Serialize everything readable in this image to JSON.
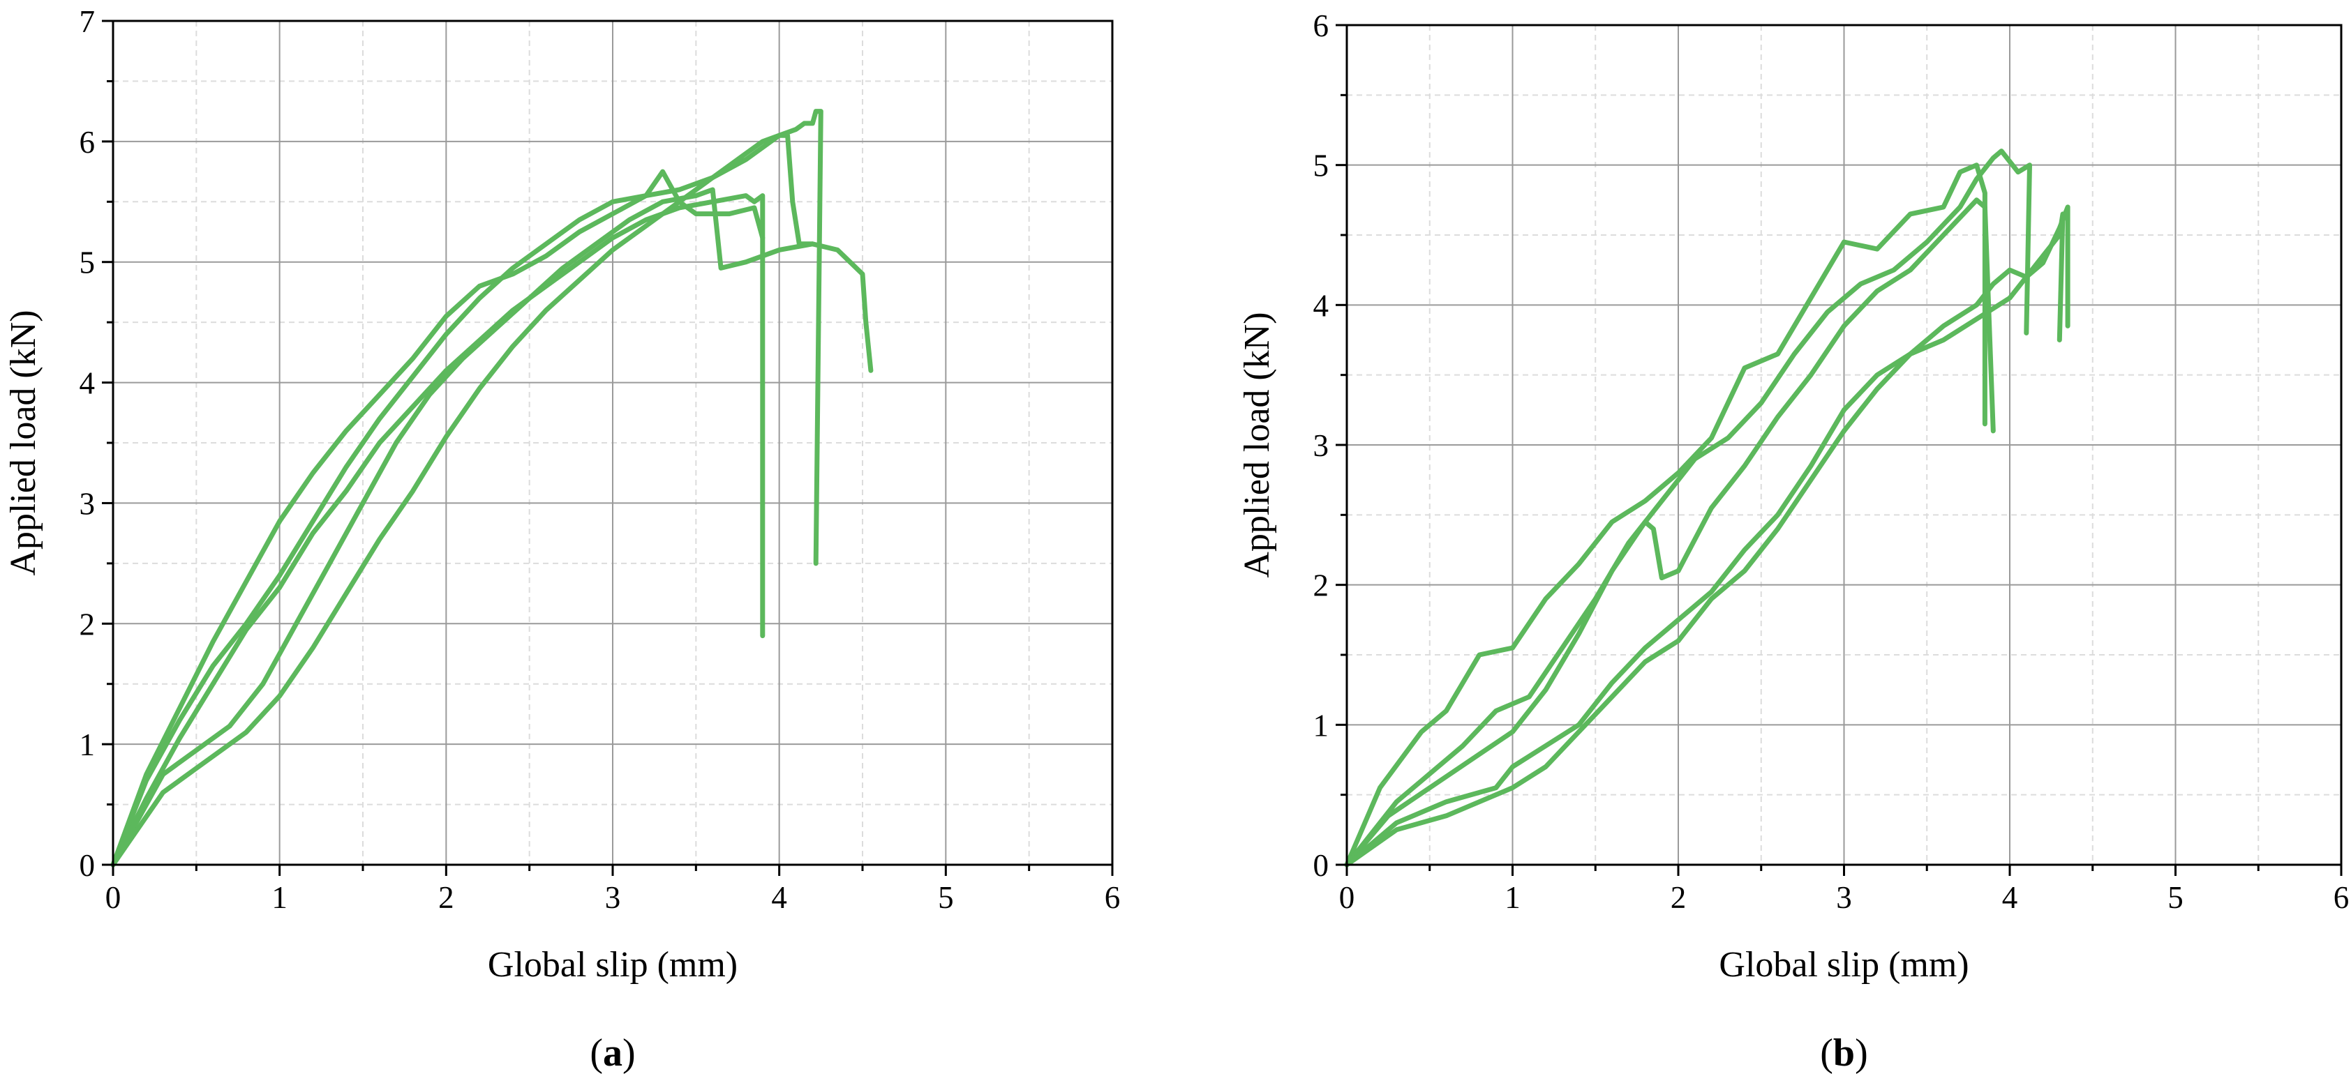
{
  "chart_data": [
    {
      "type": "line",
      "panel_label": "a",
      "xlabel": "Global slip (mm)",
      "ylabel": "Applied load (kN)",
      "xlim": [
        0,
        6
      ],
      "ylim": [
        0,
        7
      ],
      "x_ticks": [
        0,
        1,
        2,
        3,
        4,
        5,
        6
      ],
      "y_ticks": [
        0,
        1,
        2,
        3,
        4,
        5,
        6,
        7
      ],
      "grid": {
        "major": true,
        "minor_dashed": true
      },
      "line_color": "#5cb85c",
      "series": [
        {
          "points": [
            [
              0,
              0
            ],
            [
              0.2,
              0.75
            ],
            [
              0.4,
              1.3
            ],
            [
              0.6,
              1.85
            ],
            [
              0.8,
              2.35
            ],
            [
              1.0,
              2.85
            ],
            [
              1.2,
              3.25
            ],
            [
              1.4,
              3.6
            ],
            [
              1.6,
              3.9
            ],
            [
              1.8,
              4.2
            ],
            [
              2.0,
              4.55
            ],
            [
              2.2,
              4.8
            ],
            [
              2.4,
              4.9
            ],
            [
              2.6,
              5.05
            ],
            [
              2.8,
              5.25
            ],
            [
              3.0,
              5.4
            ],
            [
              3.2,
              5.55
            ],
            [
              3.3,
              5.75
            ],
            [
              3.4,
              5.5
            ],
            [
              3.5,
              5.4
            ],
            [
              3.7,
              5.4
            ],
            [
              3.85,
              5.45
            ],
            [
              3.9,
              5.2
            ]
          ]
        },
        {
          "points": [
            [
              0,
              0
            ],
            [
              0.3,
              0.75
            ],
            [
              0.5,
              0.95
            ],
            [
              0.7,
              1.15
            ],
            [
              0.9,
              1.5
            ],
            [
              1.1,
              2.0
            ],
            [
              1.3,
              2.5
            ],
            [
              1.5,
              3.0
            ],
            [
              1.7,
              3.5
            ],
            [
              1.9,
              3.9
            ],
            [
              2.1,
              4.2
            ],
            [
              2.3,
              4.45
            ],
            [
              2.5,
              4.7
            ],
            [
              2.7,
              4.95
            ],
            [
              2.9,
              5.15
            ],
            [
              3.1,
              5.35
            ],
            [
              3.3,
              5.5
            ],
            [
              3.5,
              5.55
            ],
            [
              3.6,
              5.6
            ],
            [
              3.65,
              4.95
            ],
            [
              3.8,
              5.0
            ],
            [
              4.0,
              5.1
            ],
            [
              4.2,
              5.15
            ],
            [
              4.35,
              5.1
            ],
            [
              4.5,
              4.9
            ],
            [
              4.52,
              4.5
            ],
            [
              4.55,
              4.1
            ]
          ]
        },
        {
          "points": [
            [
              0,
              0
            ],
            [
              0.2,
              0.7
            ],
            [
              0.4,
              1.2
            ],
            [
              0.6,
              1.65
            ],
            [
              0.8,
              2.0
            ],
            [
              1.0,
              2.4
            ],
            [
              1.2,
              2.85
            ],
            [
              1.4,
              3.3
            ],
            [
              1.6,
              3.7
            ],
            [
              1.8,
              4.05
            ],
            [
              2.0,
              4.4
            ],
            [
              2.2,
              4.7
            ],
            [
              2.4,
              4.95
            ],
            [
              2.6,
              5.15
            ],
            [
              2.8,
              5.35
            ],
            [
              3.0,
              5.5
            ],
            [
              3.2,
              5.55
            ],
            [
              3.4,
              5.6
            ],
            [
              3.6,
              5.7
            ],
            [
              3.8,
              5.85
            ],
            [
              4.0,
              6.05
            ],
            [
              4.1,
              6.1
            ],
            [
              4.15,
              6.15
            ],
            [
              4.2,
              6.15
            ],
            [
              4.22,
              6.25
            ],
            [
              4.25,
              6.25
            ],
            [
              4.22,
              2.5
            ]
          ]
        },
        {
          "points": [
            [
              0,
              0
            ],
            [
              0.2,
              0.55
            ],
            [
              0.4,
              1.05
            ],
            [
              0.6,
              1.5
            ],
            [
              0.8,
              1.95
            ],
            [
              1.0,
              2.3
            ],
            [
              1.2,
              2.75
            ],
            [
              1.4,
              3.1
            ],
            [
              1.6,
              3.5
            ],
            [
              1.8,
              3.8
            ],
            [
              2.0,
              4.1
            ],
            [
              2.2,
              4.35
            ],
            [
              2.4,
              4.6
            ],
            [
              2.6,
              4.8
            ],
            [
              2.8,
              5.0
            ],
            [
              3.0,
              5.2
            ],
            [
              3.2,
              5.35
            ],
            [
              3.4,
              5.45
            ],
            [
              3.6,
              5.5
            ],
            [
              3.8,
              5.55
            ],
            [
              3.85,
              5.5
            ],
            [
              3.9,
              5.55
            ],
            [
              3.9,
              1.9
            ]
          ]
        },
        {
          "points": [
            [
              0,
              0
            ],
            [
              0.3,
              0.6
            ],
            [
              0.5,
              0.8
            ],
            [
              0.8,
              1.1
            ],
            [
              1.0,
              1.4
            ],
            [
              1.2,
              1.8
            ],
            [
              1.4,
              2.25
            ],
            [
              1.6,
              2.7
            ],
            [
              1.8,
              3.1
            ],
            [
              2.0,
              3.55
            ],
            [
              2.2,
              3.95
            ],
            [
              2.4,
              4.3
            ],
            [
              2.6,
              4.6
            ],
            [
              2.8,
              4.85
            ],
            [
              3.0,
              5.1
            ],
            [
              3.2,
              5.3
            ],
            [
              3.4,
              5.5
            ],
            [
              3.6,
              5.7
            ],
            [
              3.8,
              5.9
            ],
            [
              3.9,
              6.0
            ],
            [
              4.0,
              6.05
            ],
            [
              4.05,
              6.05
            ],
            [
              4.08,
              5.5
            ],
            [
              4.12,
              5.15
            ],
            [
              4.2,
              5.15
            ]
          ]
        }
      ]
    },
    {
      "type": "line",
      "panel_label": "b",
      "xlabel": "Global slip (mm)",
      "ylabel": "Applied load (kN)",
      "xlim": [
        0,
        6
      ],
      "ylim": [
        0,
        6
      ],
      "x_ticks": [
        0,
        1,
        2,
        3,
        4,
        5,
        6
      ],
      "y_ticks": [
        0,
        1,
        2,
        3,
        4,
        5,
        6
      ],
      "grid": {
        "major": true,
        "minor_dashed": true
      },
      "line_color": "#5cb85c",
      "series": [
        {
          "points": [
            [
              0,
              0
            ],
            [
              0.2,
              0.55
            ],
            [
              0.45,
              0.95
            ],
            [
              0.6,
              1.1
            ],
            [
              0.8,
              1.5
            ],
            [
              1.0,
              1.55
            ],
            [
              1.2,
              1.9
            ],
            [
              1.4,
              2.15
            ],
            [
              1.6,
              2.45
            ],
            [
              1.8,
              2.6
            ],
            [
              2.0,
              2.8
            ],
            [
              2.2,
              3.05
            ],
            [
              2.4,
              3.55
            ],
            [
              2.6,
              3.65
            ],
            [
              2.8,
              4.05
            ],
            [
              3.0,
              4.45
            ],
            [
              3.2,
              4.4
            ],
            [
              3.4,
              4.65
            ],
            [
              3.6,
              4.7
            ],
            [
              3.7,
              4.95
            ],
            [
              3.8,
              5.0
            ],
            [
              3.85,
              4.8
            ],
            [
              3.85,
              3.15
            ]
          ]
        },
        {
          "points": [
            [
              0,
              0
            ],
            [
              0.3,
              0.45
            ],
            [
              0.5,
              0.65
            ],
            [
              0.7,
              0.85
            ],
            [
              0.9,
              1.1
            ],
            [
              1.1,
              1.2
            ],
            [
              1.3,
              1.55
            ],
            [
              1.5,
              1.9
            ],
            [
              1.7,
              2.3
            ],
            [
              1.9,
              2.6
            ],
            [
              2.1,
              2.9
            ],
            [
              2.3,
              3.05
            ],
            [
              2.5,
              3.3
            ],
            [
              2.7,
              3.65
            ],
            [
              2.9,
              3.95
            ],
            [
              3.1,
              4.15
            ],
            [
              3.3,
              4.25
            ],
            [
              3.5,
              4.45
            ],
            [
              3.7,
              4.7
            ],
            [
              3.8,
              4.9
            ],
            [
              3.9,
              5.05
            ],
            [
              3.95,
              5.1
            ],
            [
              4.05,
              4.95
            ],
            [
              4.12,
              5.0
            ],
            [
              4.1,
              3.8
            ]
          ]
        },
        {
          "points": [
            [
              0,
              0
            ],
            [
              0.25,
              0.35
            ],
            [
              0.5,
              0.55
            ],
            [
              0.75,
              0.75
            ],
            [
              1.0,
              0.95
            ],
            [
              1.2,
              1.25
            ],
            [
              1.4,
              1.65
            ],
            [
              1.6,
              2.1
            ],
            [
              1.8,
              2.45
            ],
            [
              1.85,
              2.4
            ],
            [
              1.9,
              2.05
            ],
            [
              2.0,
              2.1
            ],
            [
              2.2,
              2.55
            ],
            [
              2.4,
              2.85
            ],
            [
              2.6,
              3.2
            ],
            [
              2.8,
              3.5
            ],
            [
              3.0,
              3.85
            ],
            [
              3.2,
              4.1
            ],
            [
              3.4,
              4.25
            ],
            [
              3.6,
              4.5
            ],
            [
              3.8,
              4.75
            ],
            [
              3.85,
              4.7
            ],
            [
              3.9,
              3.1
            ]
          ]
        },
        {
          "points": [
            [
              0,
              0
            ],
            [
              0.3,
              0.3
            ],
            [
              0.6,
              0.45
            ],
            [
              0.9,
              0.55
            ],
            [
              1.0,
              0.7
            ],
            [
              1.2,
              0.85
            ],
            [
              1.4,
              1.0
            ],
            [
              1.6,
              1.3
            ],
            [
              1.8,
              1.55
            ],
            [
              2.0,
              1.75
            ],
            [
              2.2,
              1.95
            ],
            [
              2.4,
              2.25
            ],
            [
              2.6,
              2.5
            ],
            [
              2.8,
              2.85
            ],
            [
              3.0,
              3.25
            ],
            [
              3.2,
              3.5
            ],
            [
              3.4,
              3.65
            ],
            [
              3.6,
              3.85
            ],
            [
              3.8,
              4.0
            ],
            [
              3.9,
              4.15
            ],
            [
              4.0,
              4.25
            ],
            [
              4.1,
              4.2
            ],
            [
              4.2,
              4.3
            ],
            [
              4.3,
              4.55
            ],
            [
              4.35,
              4.7
            ],
            [
              4.35,
              3.85
            ]
          ]
        },
        {
          "points": [
            [
              0,
              0
            ],
            [
              0.3,
              0.25
            ],
            [
              0.6,
              0.35
            ],
            [
              0.8,
              0.45
            ],
            [
              1.0,
              0.55
            ],
            [
              1.2,
              0.7
            ],
            [
              1.4,
              0.95
            ],
            [
              1.6,
              1.2
            ],
            [
              1.8,
              1.45
            ],
            [
              2.0,
              1.6
            ],
            [
              2.2,
              1.9
            ],
            [
              2.4,
              2.1
            ],
            [
              2.6,
              2.4
            ],
            [
              2.8,
              2.75
            ],
            [
              3.0,
              3.1
            ],
            [
              3.2,
              3.4
            ],
            [
              3.4,
              3.65
            ],
            [
              3.6,
              3.75
            ],
            [
              3.8,
              3.9
            ],
            [
              4.0,
              4.05
            ],
            [
              4.2,
              4.35
            ],
            [
              4.3,
              4.5
            ],
            [
              4.32,
              4.65
            ],
            [
              4.3,
              3.75
            ]
          ]
        }
      ]
    }
  ]
}
